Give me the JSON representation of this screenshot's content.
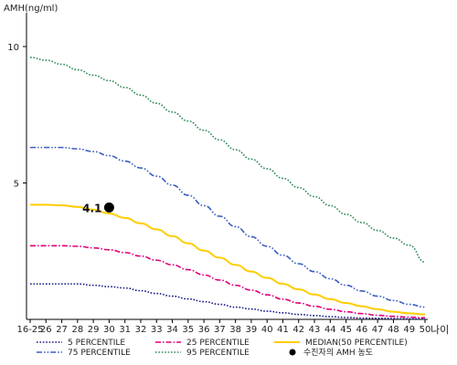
{
  "chart_data": {
    "type": "line",
    "ylabel": "AMH(ng/ml)",
    "xlabel": "나이",
    "ylim": [
      0,
      11
    ],
    "yticks": [
      5,
      10
    ],
    "ytick_labels": [
      "5",
      "10"
    ],
    "categories": [
      "16-25",
      "26",
      "27",
      "28",
      "29",
      "30",
      "31",
      "32",
      "33",
      "34",
      "35",
      "36",
      "37",
      "38",
      "39",
      "40",
      "41",
      "42",
      "43",
      "44",
      "45",
      "46",
      "47",
      "48",
      "49",
      "50"
    ],
    "series": [
      {
        "name": "5 PERCENTILE",
        "color": "#1a1a8a",
        "dash": "dotted",
        "values": [
          1.3,
          1.3,
          1.3,
          1.3,
          1.25,
          1.2,
          1.15,
          1.05,
          0.95,
          0.85,
          0.75,
          0.65,
          0.55,
          0.45,
          0.38,
          0.3,
          0.24,
          0.18,
          0.14,
          0.1,
          0.07,
          0.05,
          0.04,
          0.03,
          0.02,
          0.02
        ]
      },
      {
        "name": "25 PERCENTILE",
        "color": "#e0007a",
        "dash": "dashdot",
        "values": [
          2.7,
          2.7,
          2.7,
          2.68,
          2.62,
          2.55,
          2.45,
          2.32,
          2.17,
          2.0,
          1.82,
          1.63,
          1.44,
          1.25,
          1.07,
          0.9,
          0.74,
          0.6,
          0.48,
          0.37,
          0.28,
          0.21,
          0.15,
          0.11,
          0.08,
          0.06
        ]
      },
      {
        "name": "MEDIAN(50 PERCENTILE)",
        "color": "#ffcc00",
        "dash": "solid",
        "values": [
          4.2,
          4.2,
          4.18,
          4.12,
          4.02,
          3.88,
          3.72,
          3.52,
          3.3,
          3.05,
          2.79,
          2.52,
          2.26,
          2.0,
          1.75,
          1.52,
          1.3,
          1.1,
          0.91,
          0.74,
          0.6,
          0.48,
          0.37,
          0.28,
          0.22,
          0.18
        ]
      },
      {
        "name": "75 PERCENTILE",
        "color": "#3b5fc0",
        "dash": "dashdotdot",
        "values": [
          6.3,
          6.3,
          6.3,
          6.25,
          6.15,
          6.0,
          5.8,
          5.55,
          5.25,
          4.92,
          4.55,
          4.17,
          3.78,
          3.4,
          3.03,
          2.68,
          2.35,
          2.04,
          1.75,
          1.49,
          1.25,
          1.04,
          0.85,
          0.69,
          0.55,
          0.45
        ]
      },
      {
        "name": "95 PERCENTILE",
        "color": "#2e8b57",
        "dash": "dotted",
        "values": [
          9.6,
          9.5,
          9.35,
          9.15,
          8.95,
          8.75,
          8.5,
          8.22,
          7.92,
          7.6,
          7.27,
          6.93,
          6.58,
          6.22,
          5.87,
          5.52,
          5.17,
          4.83,
          4.5,
          4.17,
          3.85,
          3.55,
          3.26,
          2.98,
          2.72,
          2.1
        ]
      }
    ],
    "points": [
      {
        "name": "수진자의 AMH 농도",
        "x": "30",
        "y": 4.1,
        "label": "4.1",
        "color": "#000000"
      }
    ],
    "legend": {
      "placement": "bottom"
    },
    "grid": false
  }
}
